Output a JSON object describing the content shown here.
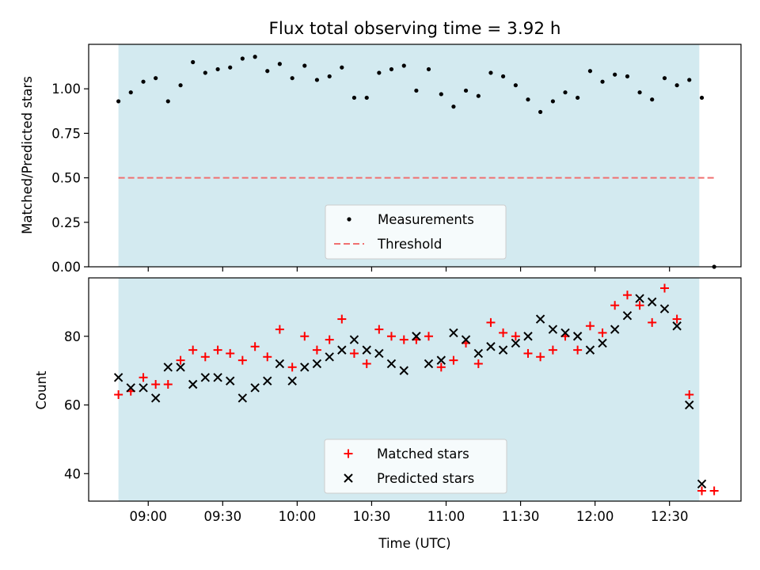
{
  "chart_data": [
    {
      "type": "scatter",
      "title": "Flux total observing time = 3.92 h",
      "xlabel": "",
      "ylabel": "Matched/Predicted stars",
      "ylim": [
        0,
        1.25
      ],
      "xlim": [
        8.6,
        12.98
      ],
      "yticks": [
        "0.00",
        "0.25",
        "0.50",
        "0.75",
        "1.00"
      ],
      "ytick_values": [
        0,
        0.25,
        0.5,
        0.75,
        1.0
      ],
      "shaded_range": [
        8.8,
        12.7
      ],
      "shade_color": "#d3eaf0",
      "legend": {
        "position": "lower center",
        "entries": [
          "Measurements",
          "Threshold"
        ]
      },
      "series": [
        {
          "name": "Measurements",
          "color": "#000000",
          "x": [
            8.8,
            8.883,
            8.967,
            9.05,
            9.133,
            9.217,
            9.3,
            9.383,
            9.467,
            9.55,
            9.633,
            9.717,
            9.8,
            9.883,
            9.967,
            10.05,
            10.133,
            10.217,
            10.3,
            10.383,
            10.467,
            10.55,
            10.633,
            10.717,
            10.8,
            10.883,
            10.967,
            11.05,
            11.133,
            11.217,
            11.3,
            11.383,
            11.467,
            11.55,
            11.633,
            11.717,
            11.8,
            11.883,
            11.967,
            12.05,
            12.133,
            12.217,
            12.3,
            12.383,
            12.467,
            12.55,
            12.633,
            12.717,
            12.8
          ],
          "values": [
            0.93,
            0.98,
            1.04,
            1.06,
            0.93,
            1.02,
            1.15,
            1.09,
            1.11,
            1.12,
            1.17,
            1.18,
            1.1,
            1.14,
            1.06,
            1.13,
            1.05,
            1.07,
            1.12,
            0.95,
            0.95,
            1.09,
            1.11,
            1.13,
            0.99,
            1.11,
            0.97,
            0.9,
            0.99,
            0.96,
            1.09,
            1.07,
            1.02,
            0.94,
            0.87,
            0.93,
            0.98,
            0.95,
            1.1,
            1.04,
            1.08,
            1.07,
            0.98,
            0.94,
            1.06,
            1.02,
            1.05,
            0.95,
            0.0
          ]
        },
        {
          "name": "Threshold",
          "style": "dashed",
          "color": "#f07070",
          "x": [
            8.8,
            12.8
          ],
          "values": [
            0.5,
            0.5
          ]
        }
      ]
    },
    {
      "type": "scatter",
      "title": "",
      "xlabel": "Time (UTC)",
      "ylabel": "Count",
      "ylim": [
        32,
        97
      ],
      "xlim": [
        8.6,
        12.98
      ],
      "yticks": [
        "40",
        "60",
        "80"
      ],
      "ytick_values": [
        40,
        60,
        80
      ],
      "categories": [
        "09:00",
        "09:30",
        "10:00",
        "10:30",
        "11:00",
        "11:30",
        "12:00",
        "12:30"
      ],
      "tick_values": [
        9.0,
        9.5,
        10.0,
        10.5,
        11.0,
        11.5,
        12.0,
        12.5
      ],
      "shaded_range": [
        8.8,
        12.7
      ],
      "legend": {
        "position": "lower center",
        "entries": [
          "Matched stars",
          "Predicted stars"
        ]
      },
      "series": [
        {
          "name": "Matched stars",
          "marker": "+",
          "color": "#ff0000",
          "x": [
            8.8,
            8.883,
            8.967,
            9.05,
            9.133,
            9.217,
            9.3,
            9.383,
            9.467,
            9.55,
            9.633,
            9.717,
            9.8,
            9.883,
            9.967,
            10.05,
            10.133,
            10.217,
            10.3,
            10.383,
            10.467,
            10.55,
            10.633,
            10.717,
            10.8,
            10.883,
            10.967,
            11.05,
            11.133,
            11.217,
            11.3,
            11.383,
            11.467,
            11.55,
            11.633,
            11.717,
            11.8,
            11.883,
            11.967,
            12.05,
            12.133,
            12.217,
            12.3,
            12.383,
            12.467,
            12.55,
            12.633,
            12.717,
            12.8
          ],
          "values": [
            63,
            64,
            68,
            66,
            66,
            73,
            76,
            74,
            76,
            75,
            73,
            77,
            74,
            82,
            71,
            80,
            76,
            79,
            85,
            75,
            72,
            82,
            80,
            79,
            79,
            80,
            71,
            73,
            78,
            72,
            84,
            81,
            80,
            75,
            74,
            76,
            80,
            76,
            83,
            81,
            89,
            92,
            89,
            84,
            94,
            85,
            63,
            35,
            35
          ]
        },
        {
          "name": "Predicted stars",
          "marker": "x",
          "color": "#000000",
          "x": [
            8.8,
            8.883,
            8.967,
            9.05,
            9.133,
            9.217,
            9.3,
            9.383,
            9.467,
            9.55,
            9.633,
            9.717,
            9.8,
            9.883,
            9.967,
            10.05,
            10.133,
            10.217,
            10.3,
            10.383,
            10.467,
            10.55,
            10.633,
            10.717,
            10.8,
            10.883,
            10.967,
            11.05,
            11.133,
            11.217,
            11.3,
            11.383,
            11.467,
            11.55,
            11.633,
            11.717,
            11.8,
            11.883,
            11.967,
            12.05,
            12.133,
            12.217,
            12.3,
            12.383,
            12.467,
            12.55,
            12.633,
            12.717
          ],
          "values": [
            68,
            65,
            65,
            62,
            71,
            71,
            66,
            68,
            68,
            67,
            62,
            65,
            67,
            72,
            67,
            71,
            72,
            74,
            76,
            79,
            76,
            75,
            72,
            70,
            80,
            72,
            73,
            81,
            79,
            75,
            77,
            76,
            78,
            80,
            85,
            82,
            81,
            80,
            76,
            78,
            82,
            86,
            91,
            90,
            88,
            83,
            60,
            37
          ]
        }
      ]
    }
  ]
}
